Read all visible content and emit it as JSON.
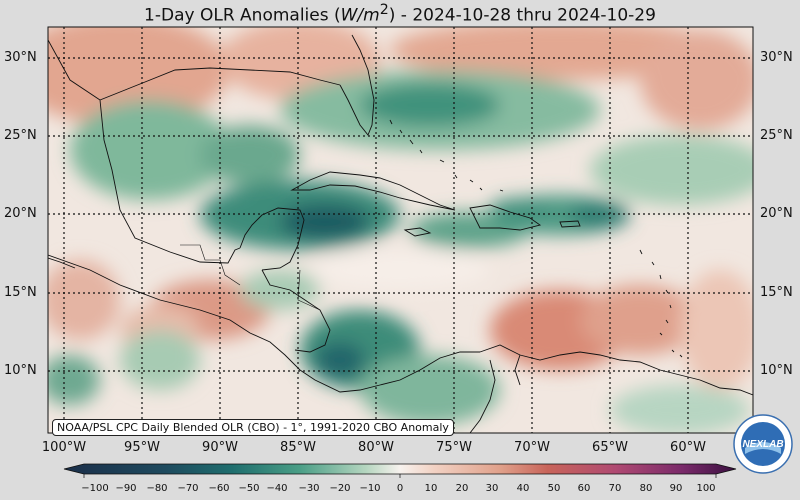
{
  "title": {
    "prefix": "1-Day OLR Anomalies (",
    "unit_italic": "W/m",
    "unit_sup": "2",
    "suffix": ") - 2024-10-28 thru 2024-10-29"
  },
  "map": {
    "lat_labels_left": [
      "30°N",
      "25°N",
      "20°N",
      "15°N",
      "10°N"
    ],
    "lat_labels_right": [
      "30°N",
      "25°N",
      "20°N",
      "15°N",
      "10°N"
    ],
    "lon_labels": [
      "100°W",
      "95°W",
      "90°W",
      "85°W",
      "80°W",
      "75°W",
      "70°W",
      "65°W",
      "60°W"
    ],
    "credit": "NOAA/PSL CPC Daily Blended OLR (CBO) - 1°, 1991-2020 CBO Anomaly",
    "colorbar_ticks": [
      "−100",
      "−90",
      "−80",
      "−70",
      "−60",
      "−50",
      "−40",
      "−30",
      "−20",
      "−10",
      "0",
      "10",
      "20",
      "30",
      "40",
      "50",
      "60",
      "70",
      "80",
      "90",
      "100"
    ],
    "colors": {
      "neg_strong": "#1e4a5e",
      "neg_mid": "#2f8a78",
      "neg_light": "#9cc8ad",
      "neutral": "#f4ece4",
      "pos_light": "#eec4b2",
      "pos_mid": "#d88a74",
      "pos_strong": "#a0306a"
    },
    "logo_text": "NEXLAB"
  }
}
